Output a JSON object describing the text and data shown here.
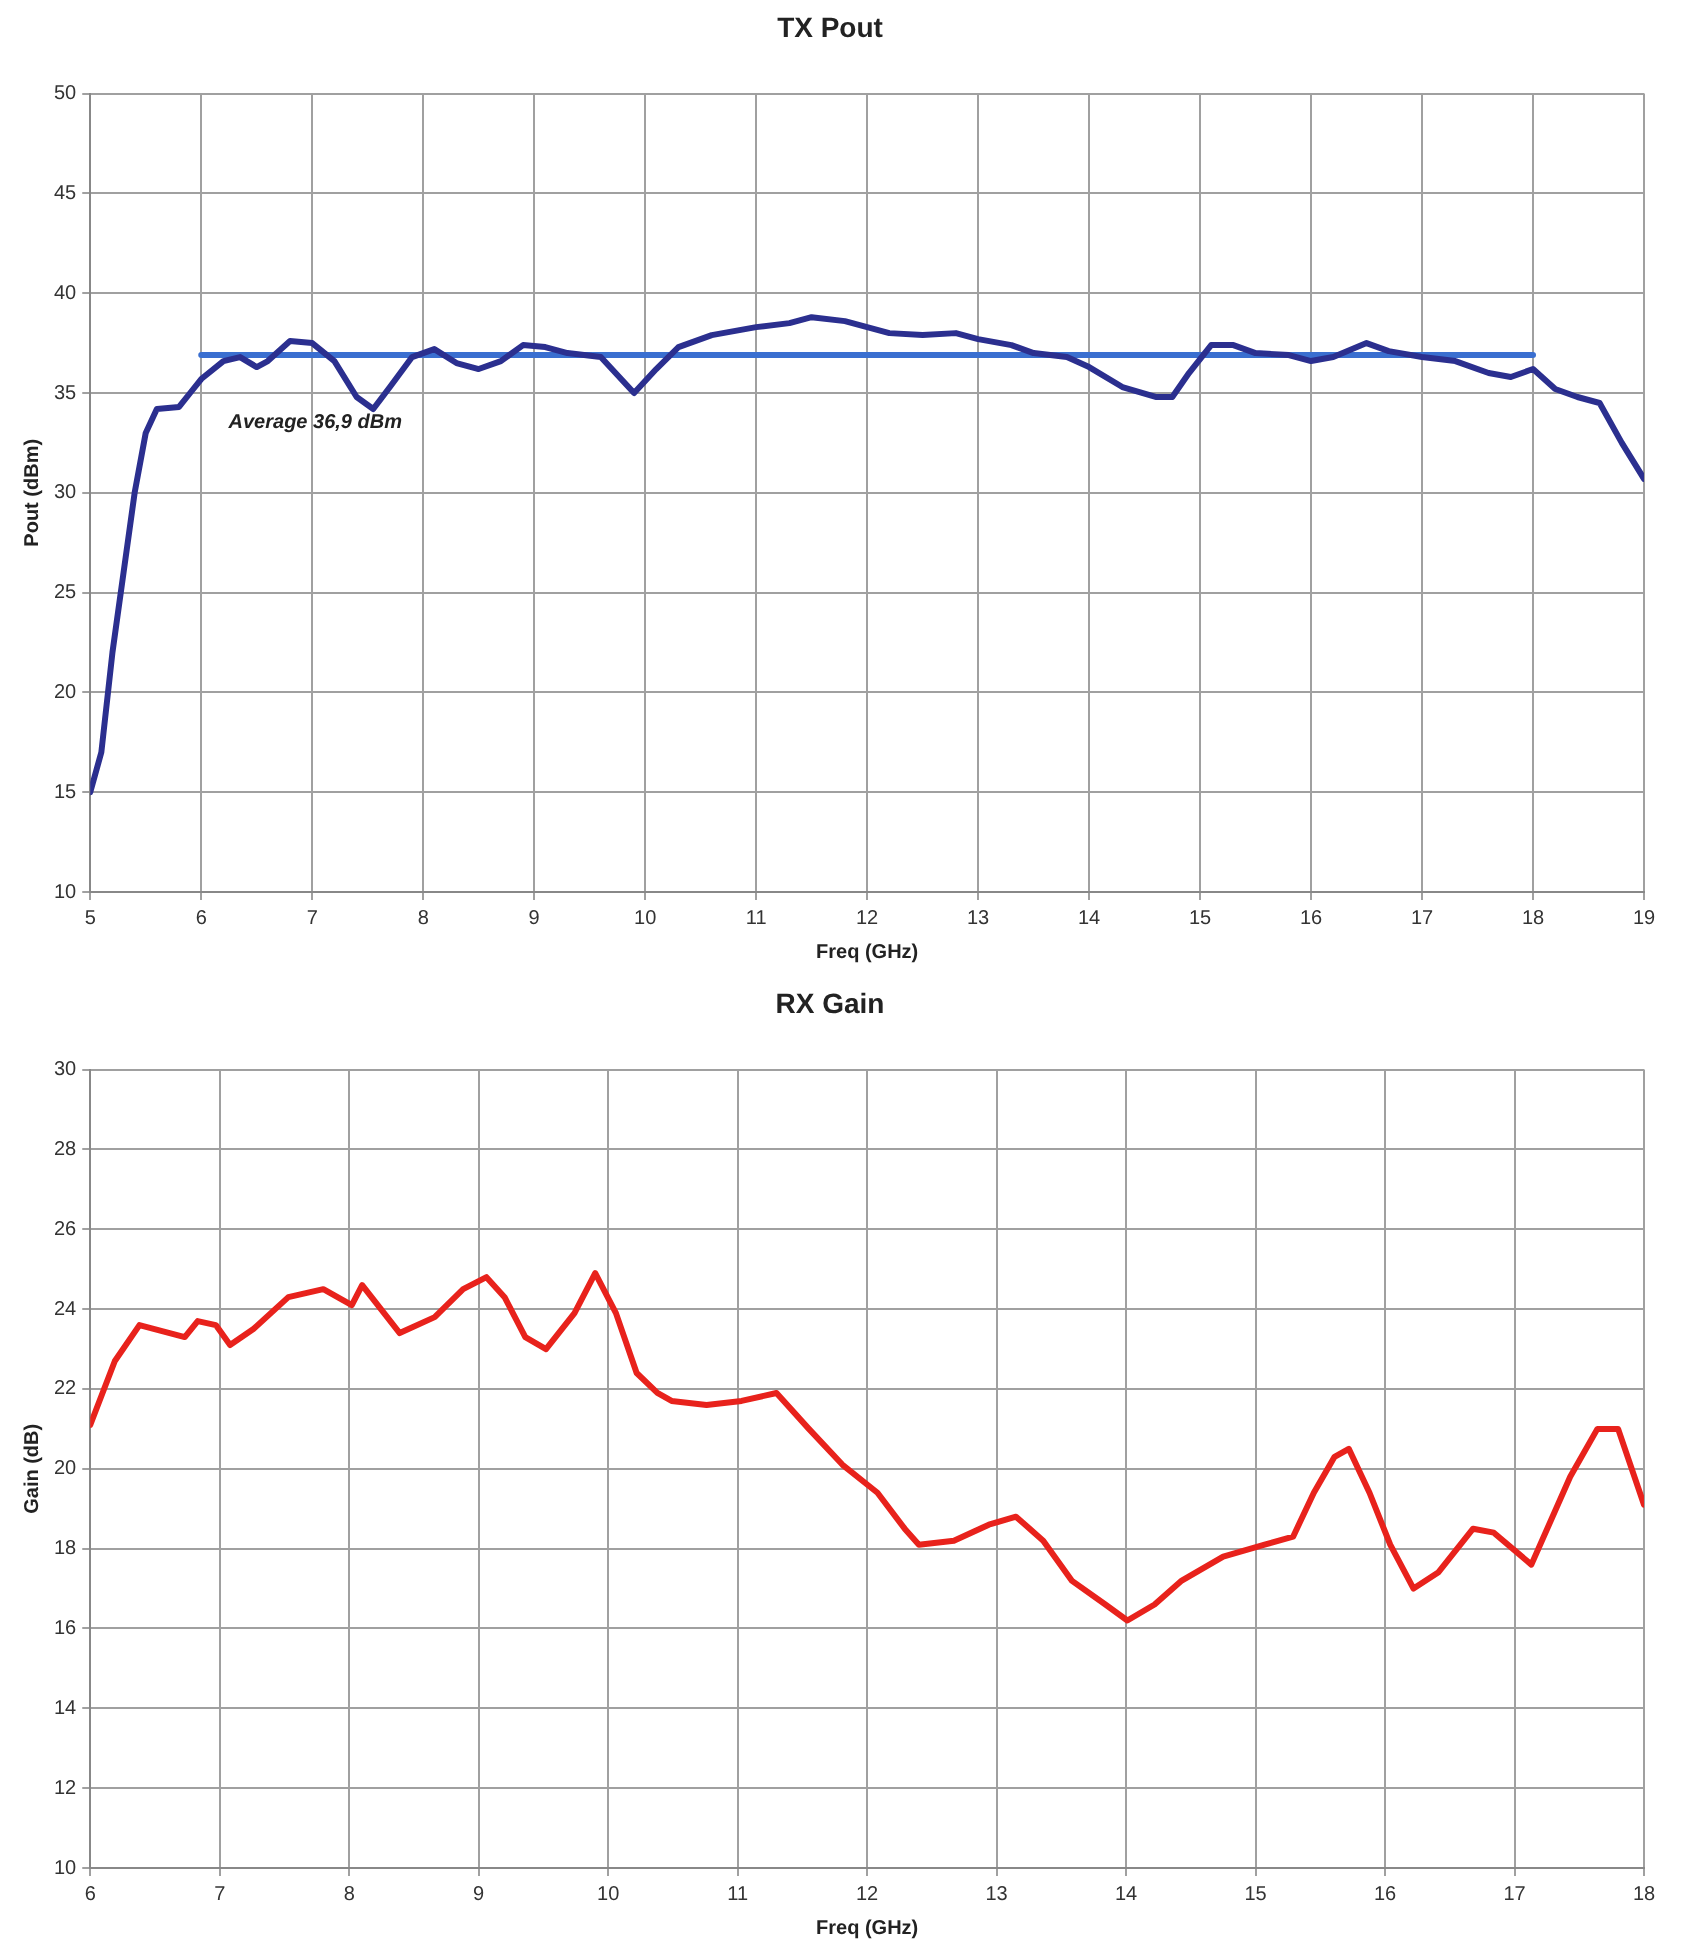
{
  "chart_data": [
    {
      "type": "line",
      "title": "TX Pout",
      "xlabel": "Freq (GHz)",
      "ylabel": "Pout (dBm)",
      "xlim": [
        5,
        19
      ],
      "xticks": [
        5,
        6,
        7,
        8,
        9,
        10,
        11,
        12,
        13,
        14,
        15,
        16,
        17,
        18,
        19
      ],
      "ylim": [
        10,
        50
      ],
      "yticks": [
        10,
        15,
        20,
        25,
        30,
        35,
        40,
        45,
        50
      ],
      "grid": true,
      "legend": false,
      "marker": "none",
      "series": [
        {
          "color": "#2b2f8f",
          "x": [
            5.0,
            5.1,
            5.2,
            5.3,
            5.4,
            5.5,
            5.6,
            5.8,
            5.9,
            6.0,
            6.2,
            6.35,
            6.5,
            6.6,
            6.8,
            7.0,
            7.2,
            7.4,
            7.55,
            7.7,
            7.9,
            8.1,
            8.3,
            8.5,
            8.7,
            8.9,
            9.1,
            9.3,
            9.6,
            9.8,
            9.9,
            10.1,
            10.3,
            10.6,
            11.0,
            11.3,
            11.5,
            11.8,
            12.0,
            12.2,
            12.5,
            12.8,
            13.0,
            13.3,
            13.5,
            13.8,
            14.0,
            14.3,
            14.6,
            14.75,
            14.9,
            15.1,
            15.3,
            15.5,
            15.8,
            16.0,
            16.2,
            16.5,
            16.7,
            17.0,
            17.3,
            17.6,
            17.8,
            18.0,
            18.2,
            18.4,
            18.6,
            18.8,
            19.0
          ],
          "values": [
            15,
            17,
            22,
            26,
            30,
            33,
            34.2,
            34.3,
            35,
            35.7,
            36.6,
            36.8,
            36.3,
            36.6,
            37.6,
            37.5,
            36.6,
            34.8,
            34.2,
            35.3,
            36.8,
            37.2,
            36.5,
            36.2,
            36.6,
            37.4,
            37.3,
            37.0,
            36.8,
            35.6,
            35.0,
            36.2,
            37.3,
            37.9,
            38.3,
            38.5,
            38.8,
            38.6,
            38.3,
            38.0,
            37.9,
            38.0,
            37.7,
            37.4,
            37.0,
            36.8,
            36.3,
            35.3,
            34.8,
            34.8,
            36.0,
            37.4,
            37.4,
            37.0,
            36.9,
            36.6,
            36.8,
            37.5,
            37.1,
            36.8,
            36.6,
            36.0,
            35.8,
            36.2,
            35.2,
            34.8,
            34.5,
            32.5,
            30.7
          ]
        },
        {
          "color": "#3a6fd0",
          "x": [
            6,
            18
          ],
          "values": [
            36.9,
            36.9
          ]
        }
      ],
      "annotations": [
        "Average 36,9 dBm"
      ]
    },
    {
      "type": "line",
      "title": "RX Gain",
      "xlabel": "Freq (GHz)",
      "ylabel": "Gain (dB)",
      "xlim": [
        6,
        18
      ],
      "xticks": [
        6,
        7,
        8,
        9,
        10,
        11,
        12,
        13,
        14,
        15,
        16,
        17,
        18
      ],
      "ylim": [
        10,
        30
      ],
      "yticks": [
        10,
        12,
        14,
        16,
        18,
        20,
        22,
        24,
        26,
        28,
        30
      ],
      "grid": true,
      "legend": false,
      "marker": "none",
      "series": [
        {
          "color": "#e8221c",
          "x": [
            6.0,
            6.19,
            6.38,
            6.73,
            6.83,
            6.97,
            7.08,
            7.26,
            7.53,
            7.8,
            8.02,
            8.1,
            8.39,
            8.66,
            8.88,
            9.06,
            9.2,
            9.36,
            9.52,
            9.74,
            9.9,
            10.06,
            10.22,
            10.38,
            10.49,
            10.76,
            11.03,
            11.3,
            11.55,
            11.81,
            12.08,
            12.29,
            12.4,
            12.67,
            12.94,
            13.15,
            13.36,
            13.58,
            13.84,
            14.01,
            14.22,
            14.43,
            14.75,
            15.07,
            15.29,
            15.45,
            15.61,
            15.72,
            15.88,
            16.04,
            16.22,
            16.41,
            16.68,
            16.84,
            17.13,
            17.43,
            17.64,
            17.8,
            18.0
          ],
          "values": [
            21.1,
            22.7,
            23.6,
            23.3,
            23.7,
            23.6,
            23.1,
            23.5,
            24.3,
            24.5,
            24.1,
            24.6,
            23.4,
            23.8,
            24.5,
            24.8,
            24.3,
            23.3,
            23.0,
            23.9,
            24.9,
            23.9,
            22.4,
            21.9,
            21.7,
            21.6,
            21.7,
            21.9,
            21.0,
            20.1,
            19.4,
            18.5,
            18.1,
            18.2,
            18.6,
            18.8,
            18.2,
            17.2,
            16.6,
            16.2,
            16.6,
            17.2,
            17.8,
            18.1,
            18.3,
            19.4,
            20.3,
            20.5,
            19.4,
            18.1,
            17.0,
            17.4,
            18.5,
            18.4,
            17.6,
            19.8,
            21.0,
            21.0,
            19.1
          ]
        }
      ]
    }
  ]
}
